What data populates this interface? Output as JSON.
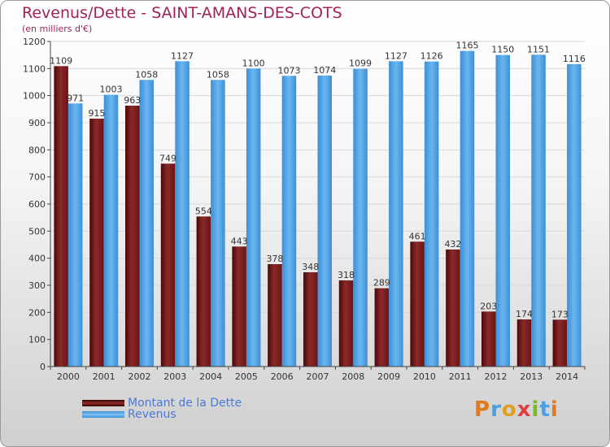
{
  "header": {
    "title": "Revenus/Dette - SAINT-AMANS-DES-COTS",
    "subtitle": "(en milliers d'€)"
  },
  "legend": {
    "items": [
      {
        "label": "Montant de la Dette",
        "color": "#7a1a1a"
      },
      {
        "label": "Revenus",
        "color": "#4a9fe0"
      }
    ]
  },
  "logo": {
    "text": "Proxiti",
    "letters": [
      "P",
      "r",
      "o",
      "x",
      "i",
      "t",
      "i"
    ],
    "colors": [
      "#e07a1a",
      "#4aa0e0",
      "#e0a020",
      "#e04040",
      "#7ab82a",
      "#4aa0e0",
      "#e07a1a"
    ]
  },
  "chart_data": {
    "type": "bar",
    "title": "Revenus/Dette - SAINT-AMANS-DES-COTS",
    "ylabel": "(en milliers d'€)",
    "categories": [
      "2000",
      "2001",
      "2002",
      "2003",
      "2004",
      "2005",
      "2006",
      "2007",
      "2008",
      "2009",
      "2010",
      "2011",
      "2012",
      "2013",
      "2014"
    ],
    "series": [
      {
        "name": "Montant de la Dette",
        "color": "#7a1a1a",
        "values": [
          1109,
          915,
          963,
          749,
          554,
          443,
          378,
          348,
          318,
          289,
          461,
          432,
          203,
          174,
          173
        ]
      },
      {
        "name": "Revenus",
        "color": "#4a9fe0",
        "values": [
          971,
          1003,
          1058,
          1127,
          1058,
          1100,
          1073,
          1074,
          1099,
          1127,
          1126,
          1165,
          1150,
          1151,
          1116
        ]
      }
    ],
    "ylim": [
      0,
      1200
    ],
    "yticks": [
      0,
      100,
      200,
      300,
      400,
      500,
      600,
      700,
      800,
      900,
      1000,
      1100,
      1200
    ],
    "grid": true,
    "legend": "bottom-left"
  }
}
